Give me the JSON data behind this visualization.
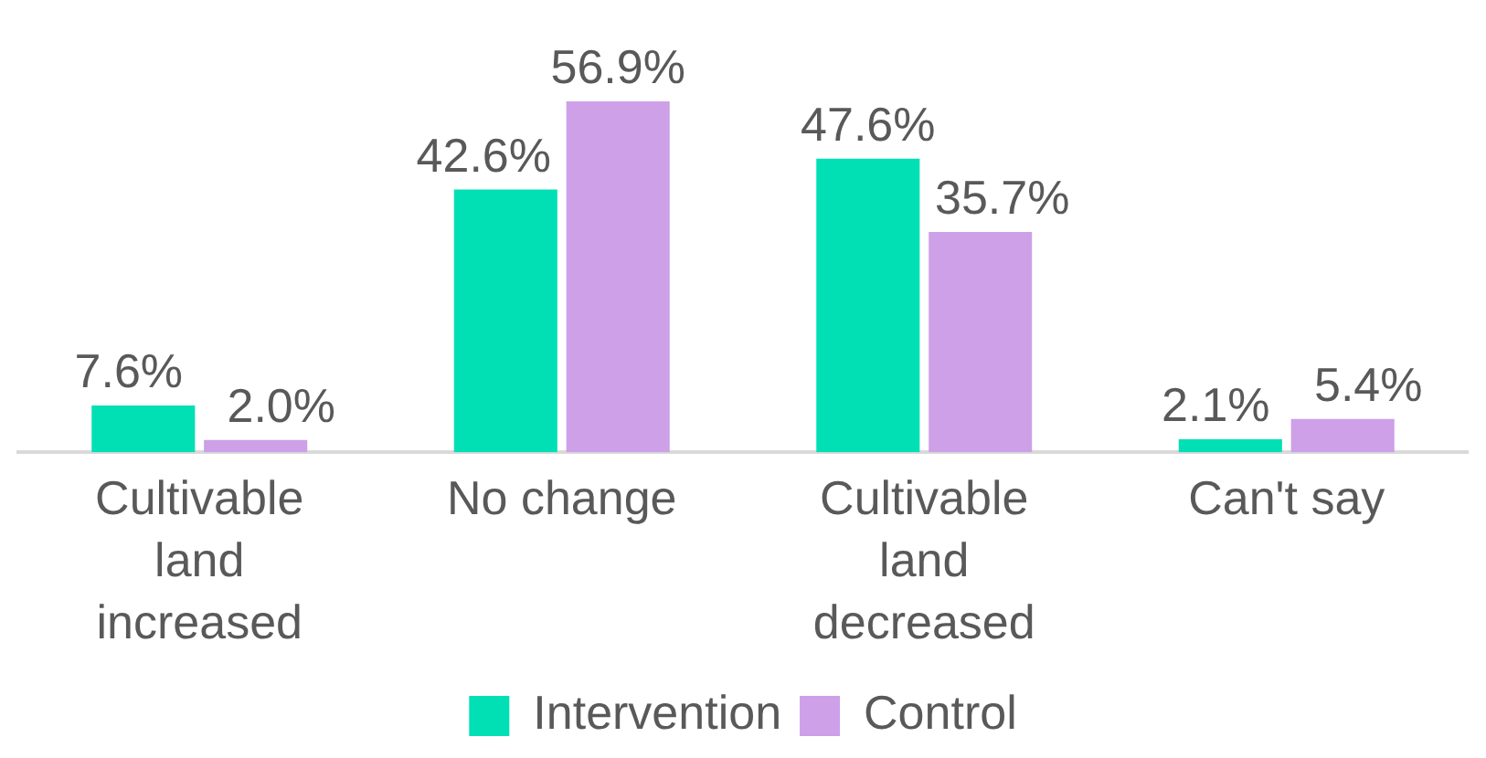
{
  "chart_data": {
    "type": "bar",
    "categories": [
      "Cultivable land increased",
      "No change",
      "Cultivable land decreased",
      "Can't say"
    ],
    "series": [
      {
        "name": "Intervention",
        "color": "#00e0b4",
        "values": [
          7.6,
          42.6,
          47.6,
          2.1
        ],
        "value_labels": [
          "7.6%",
          "42.6%",
          "47.6%",
          "2.1%"
        ]
      },
      {
        "name": "Control",
        "color": "#cda0e8",
        "values": [
          2.0,
          56.9,
          35.7,
          5.4
        ],
        "value_labels": [
          "2.0%",
          "56.9%",
          "35.7%",
          "5.4%"
        ]
      }
    ],
    "legend": "bottom",
    "grid": false
  }
}
